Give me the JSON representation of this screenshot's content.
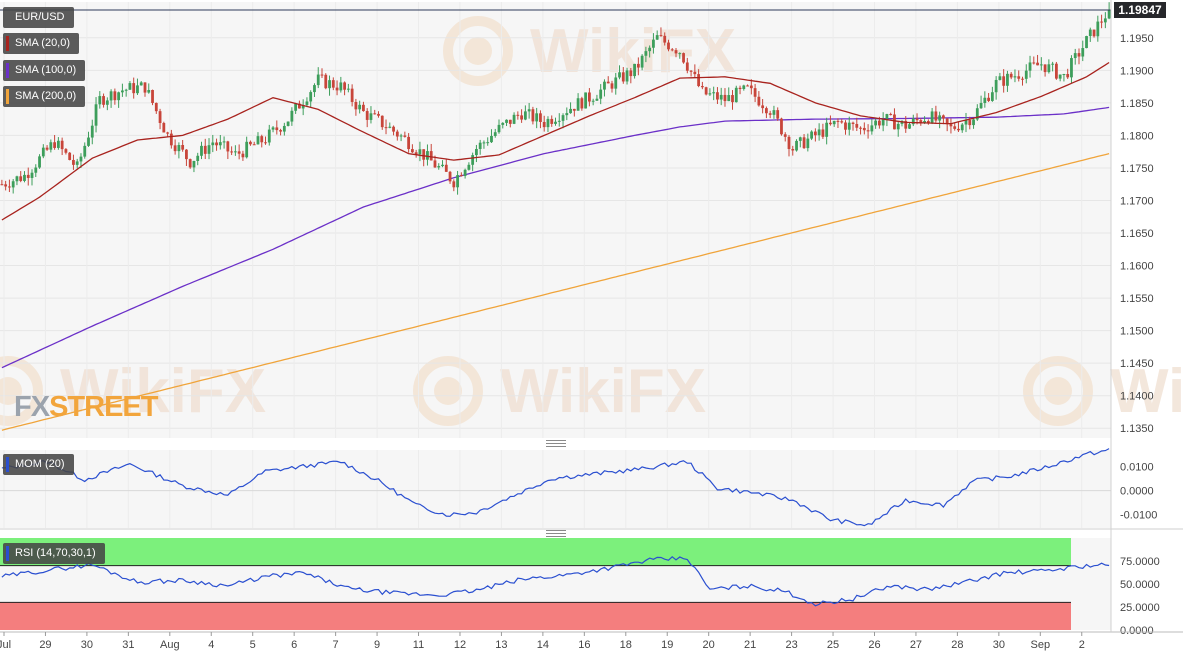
{
  "app": {
    "symbol": "EUR/USD",
    "last_price": "1.19847",
    "watermark_text": "WikiFX",
    "brand_logo": {
      "part1": "FX",
      "part2": "STREET"
    }
  },
  "colors": {
    "bull_candle": "#3d9e5b",
    "bear_candle": "#c8453a",
    "sma20": "#a8231e",
    "sma100": "#6b30c8",
    "sma200": "#f0a43a",
    "mom": "#2a4fd0",
    "rsi": "#2a4fd0",
    "rsi_overbought_zone": "#7cf07c",
    "rsi_oversold_zone": "#f47e7e",
    "grid": "#e6e6e6",
    "background": "#f6f6f6",
    "logo_part1": "#9ba3ad",
    "logo_part2": "#f2a53c"
  },
  "legends": {
    "sma20": "SMA (20,0)",
    "sma100": "SMA (100,0)",
    "sma200": "SMA (200,0)",
    "mom": "MOM (20)",
    "rsi": "RSI (14,70,30,1)"
  },
  "axes": {
    "price_ticks": [
      "1.1950",
      "1.1900",
      "1.1850",
      "1.1800",
      "1.1750",
      "1.1700",
      "1.1650",
      "1.1600",
      "1.1550",
      "1.1500",
      "1.1450",
      "1.1400",
      "1.1350"
    ],
    "mom_ticks": [
      "0.0100",
      "0.0000",
      "-0.0100"
    ],
    "rsi_ticks": [
      "75.0000",
      "50.0000",
      "25.0000",
      "0.0000"
    ],
    "x_labels": [
      "Jul",
      "29",
      "30",
      "31",
      "Aug",
      "4",
      "5",
      "6",
      "7",
      "9",
      "11",
      "12",
      "13",
      "14",
      "16",
      "18",
      "19",
      "20",
      "21",
      "23",
      "25",
      "26",
      "27",
      "28",
      "30",
      "Sep",
      "2"
    ]
  },
  "chart_data": [
    {
      "type": "candlestick",
      "title": "EUR/USD",
      "timeframe": "4h candles",
      "x_range": [
        "Jul 28",
        "Sep 1"
      ],
      "ylim": [
        1.1335,
        1.2005
      ],
      "grid": true,
      "last_value": 1.19847,
      "price_path": [
        {
          "d": 0,
          "v": 1.1725
        },
        {
          "d": 6,
          "v": 1.1738
        },
        {
          "d": 14,
          "v": 1.179
        },
        {
          "d": 20,
          "v": 1.175
        },
        {
          "d": 26,
          "v": 1.1855
        },
        {
          "d": 32,
          "v": 1.187
        },
        {
          "d": 38,
          "v": 1.1875
        },
        {
          "d": 44,
          "v": 1.18
        },
        {
          "d": 50,
          "v": 1.176
        },
        {
          "d": 56,
          "v": 1.179
        },
        {
          "d": 62,
          "v": 1.177
        },
        {
          "d": 70,
          "v": 1.1795
        },
        {
          "d": 76,
          "v": 1.1825
        },
        {
          "d": 84,
          "v": 1.1885
        },
        {
          "d": 90,
          "v": 1.1875
        },
        {
          "d": 96,
          "v": 1.1835
        },
        {
          "d": 102,
          "v": 1.1815
        },
        {
          "d": 108,
          "v": 1.179
        },
        {
          "d": 114,
          "v": 1.176
        },
        {
          "d": 120,
          "v": 1.173
        },
        {
          "d": 126,
          "v": 1.178
        },
        {
          "d": 132,
          "v": 1.181
        },
        {
          "d": 138,
          "v": 1.1835
        },
        {
          "d": 144,
          "v": 1.182
        },
        {
          "d": 150,
          "v": 1.184
        },
        {
          "d": 156,
          "v": 1.1858
        },
        {
          "d": 162,
          "v": 1.188
        },
        {
          "d": 168,
          "v": 1.19
        },
        {
          "d": 174,
          "v": 1.195
        },
        {
          "d": 180,
          "v": 1.193
        },
        {
          "d": 186,
          "v": 1.1865
        },
        {
          "d": 192,
          "v": 1.1855
        },
        {
          "d": 198,
          "v": 1.187
        },
        {
          "d": 204,
          "v": 1.184
        },
        {
          "d": 210,
          "v": 1.178
        },
        {
          "d": 216,
          "v": 1.18
        },
        {
          "d": 222,
          "v": 1.182
        },
        {
          "d": 228,
          "v": 1.181
        },
        {
          "d": 234,
          "v": 1.1825
        },
        {
          "d": 240,
          "v": 1.1815
        },
        {
          "d": 246,
          "v": 1.183
        },
        {
          "d": 252,
          "v": 1.181
        },
        {
          "d": 258,
          "v": 1.183
        },
        {
          "d": 264,
          "v": 1.188
        },
        {
          "d": 270,
          "v": 1.1895
        },
        {
          "d": 276,
          "v": 1.191
        },
        {
          "d": 282,
          "v": 1.189
        },
        {
          "d": 288,
          "v": 1.1945
        },
        {
          "d": 293,
          "v": 1.1985
        },
        {
          "d": 294,
          "v": 1.1984
        }
      ],
      "series": [
        {
          "name": "SMA (20,0)",
          "values": [
            {
              "d": 0,
              "v": 1.167
            },
            {
              "d": 10,
              "v": 1.1705
            },
            {
              "d": 24,
              "v": 1.1765
            },
            {
              "d": 36,
              "v": 1.1793
            },
            {
              "d": 48,
              "v": 1.18
            },
            {
              "d": 60,
              "v": 1.1825
            },
            {
              "d": 72,
              "v": 1.1858
            },
            {
              "d": 84,
              "v": 1.184
            },
            {
              "d": 96,
              "v": 1.1805
            },
            {
              "d": 108,
              "v": 1.1772
            },
            {
              "d": 120,
              "v": 1.1762
            },
            {
              "d": 132,
              "v": 1.177
            },
            {
              "d": 144,
              "v": 1.18
            },
            {
              "d": 156,
              "v": 1.183
            },
            {
              "d": 168,
              "v": 1.1858
            },
            {
              "d": 180,
              "v": 1.1888
            },
            {
              "d": 192,
              "v": 1.189
            },
            {
              "d": 204,
              "v": 1.188
            },
            {
              "d": 216,
              "v": 1.185
            },
            {
              "d": 228,
              "v": 1.183
            },
            {
              "d": 240,
              "v": 1.182
            },
            {
              "d": 252,
              "v": 1.1818
            },
            {
              "d": 264,
              "v": 1.1835
            },
            {
              "d": 276,
              "v": 1.186
            },
            {
              "d": 288,
              "v": 1.189
            },
            {
              "d": 294,
              "v": 1.1912
            }
          ]
        },
        {
          "name": "SMA (100,0)",
          "values": [
            {
              "d": 0,
              "v": 1.1443
            },
            {
              "d": 24,
              "v": 1.1507
            },
            {
              "d": 48,
              "v": 1.1568
            },
            {
              "d": 72,
              "v": 1.1625
            },
            {
              "d": 96,
              "v": 1.169
            },
            {
              "d": 120,
              "v": 1.1735
            },
            {
              "d": 144,
              "v": 1.1772
            },
            {
              "d": 168,
              "v": 1.18
            },
            {
              "d": 180,
              "v": 1.1813
            },
            {
              "d": 192,
              "v": 1.1822
            },
            {
              "d": 216,
              "v": 1.1825
            },
            {
              "d": 240,
              "v": 1.1826
            },
            {
              "d": 264,
              "v": 1.1828
            },
            {
              "d": 282,
              "v": 1.1833
            },
            {
              "d": 294,
              "v": 1.1843
            }
          ]
        },
        {
          "name": "SMA (200,0)",
          "values": [
            {
              "d": 0,
              "v": 1.1347
            },
            {
              "d": 294,
              "v": 1.1772
            }
          ]
        }
      ]
    },
    {
      "type": "line",
      "title": "MOM (20)",
      "ylim": [
        -0.0155,
        0.0168
      ],
      "series": [
        {
          "name": "MOM (20)",
          "values": [
            {
              "d": 0,
              "v": 0.009
            },
            {
              "d": 12,
              "v": 0.012
            },
            {
              "d": 22,
              "v": 0.0045
            },
            {
              "d": 34,
              "v": 0.011
            },
            {
              "d": 48,
              "v": 0.002
            },
            {
              "d": 60,
              "v": -0.002
            },
            {
              "d": 70,
              "v": 0.008
            },
            {
              "d": 80,
              "v": 0.01
            },
            {
              "d": 90,
              "v": 0.012
            },
            {
              "d": 100,
              "v": 0.004
            },
            {
              "d": 110,
              "v": -0.006
            },
            {
              "d": 118,
              "v": -0.01
            },
            {
              "d": 126,
              "v": -0.009
            },
            {
              "d": 136,
              "v": -0.002
            },
            {
              "d": 146,
              "v": 0.005
            },
            {
              "d": 158,
              "v": 0.007
            },
            {
              "d": 170,
              "v": 0.009
            },
            {
              "d": 182,
              "v": 0.012
            },
            {
              "d": 190,
              "v": 0.001
            },
            {
              "d": 200,
              "v": -0.001
            },
            {
              "d": 210,
              "v": -0.004
            },
            {
              "d": 220,
              "v": -0.012
            },
            {
              "d": 230,
              "v": -0.0145
            },
            {
              "d": 240,
              "v": -0.004
            },
            {
              "d": 250,
              "v": -0.006
            },
            {
              "d": 258,
              "v": 0.004
            },
            {
              "d": 268,
              "v": 0.006
            },
            {
              "d": 278,
              "v": 0.01
            },
            {
              "d": 288,
              "v": 0.015
            },
            {
              "d": 294,
              "v": 0.0168
            }
          ]
        }
      ]
    },
    {
      "type": "line",
      "title": "RSI (14,70,30,1)",
      "ylim": [
        0,
        100
      ],
      "overbought": 70,
      "oversold": 30,
      "series": [
        {
          "name": "RSI (14,70,30,1)",
          "values": [
            {
              "d": 0,
              "v": 58
            },
            {
              "d": 12,
              "v": 65
            },
            {
              "d": 24,
              "v": 71
            },
            {
              "d": 36,
              "v": 52
            },
            {
              "d": 48,
              "v": 54
            },
            {
              "d": 60,
              "v": 48
            },
            {
              "d": 70,
              "v": 58
            },
            {
              "d": 80,
              "v": 62
            },
            {
              "d": 92,
              "v": 45
            },
            {
              "d": 104,
              "v": 40
            },
            {
              "d": 116,
              "v": 38
            },
            {
              "d": 126,
              "v": 43
            },
            {
              "d": 138,
              "v": 55
            },
            {
              "d": 150,
              "v": 60
            },
            {
              "d": 162,
              "v": 68
            },
            {
              "d": 172,
              "v": 76
            },
            {
              "d": 182,
              "v": 78
            },
            {
              "d": 188,
              "v": 44
            },
            {
              "d": 198,
              "v": 48
            },
            {
              "d": 208,
              "v": 42
            },
            {
              "d": 216,
              "v": 28
            },
            {
              "d": 226,
              "v": 34
            },
            {
              "d": 236,
              "v": 48
            },
            {
              "d": 246,
              "v": 44
            },
            {
              "d": 256,
              "v": 52
            },
            {
              "d": 266,
              "v": 62
            },
            {
              "d": 276,
              "v": 64
            },
            {
              "d": 288,
              "v": 70
            },
            {
              "d": 294,
              "v": 71
            }
          ]
        }
      ]
    }
  ]
}
